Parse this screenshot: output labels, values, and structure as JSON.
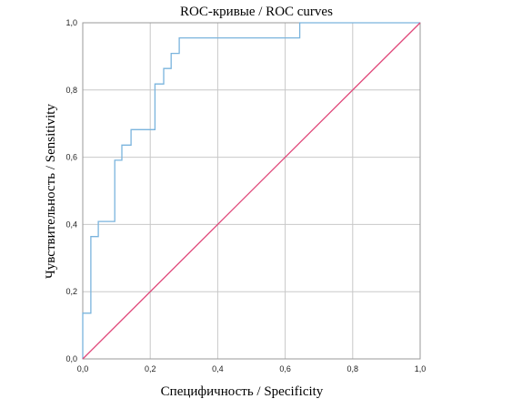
{
  "chart_data": {
    "type": "line",
    "title": "ROC-кривые / ROC curves",
    "xlabel": "Специфичность / Specificity",
    "ylabel": "Чувствительность / Sensitivity",
    "xlim": [
      0,
      1
    ],
    "ylim": [
      0,
      1
    ],
    "xticks": [
      "0,0",
      "0,2",
      "0,4",
      "0,6",
      "0,8",
      "1,0"
    ],
    "yticks": [
      "0,0",
      "0,2",
      "0,4",
      "0,6",
      "0,8",
      "1,0"
    ],
    "grid": true,
    "legend": "none",
    "series": [
      {
        "color": "#7ab4dd",
        "x": [
          0,
          0,
          0.024,
          0.024,
          0.046,
          0.046,
          0.095,
          0.095,
          0.116,
          0.116,
          0.143,
          0.143,
          0.214,
          0.214,
          0.24,
          0.24,
          0.262,
          0.262,
          0.286,
          0.286,
          0.643,
          0.643,
          1.0
        ],
        "y": [
          0,
          0.136,
          0.136,
          0.364,
          0.364,
          0.409,
          0.409,
          0.591,
          0.591,
          0.636,
          0.636,
          0.682,
          0.682,
          0.818,
          0.818,
          0.864,
          0.864,
          0.909,
          0.909,
          0.955,
          0.955,
          1.0,
          1.0
        ]
      },
      {
        "color": "#e0487a",
        "x": [
          0,
          1
        ],
        "y": [
          0,
          1
        ]
      }
    ]
  }
}
